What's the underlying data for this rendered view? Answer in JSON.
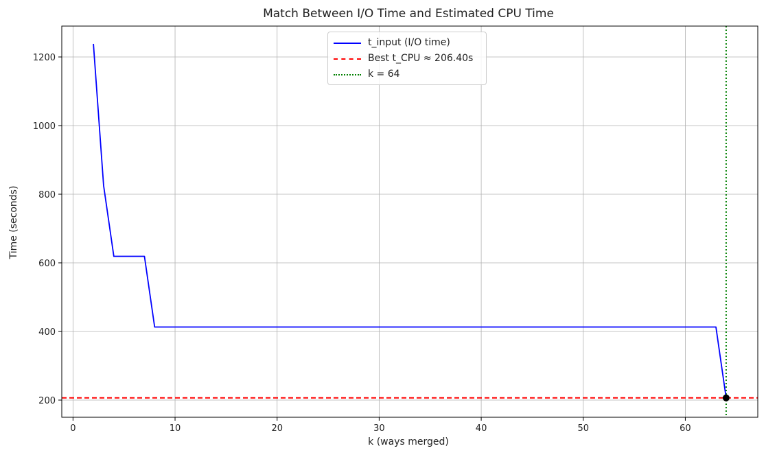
{
  "chart_data": {
    "type": "line",
    "title": "Match Between I/O Time and Estimated CPU Time",
    "xlabel": "k (ways merged)",
    "ylabel": "Time (seconds)",
    "xlim": [
      -1.1,
      67.1
    ],
    "ylim": [
      150,
      1290
    ],
    "xticks": [
      0,
      10,
      20,
      30,
      40,
      50,
      60
    ],
    "yticks": [
      200,
      400,
      600,
      800,
      1000,
      1200
    ],
    "grid": true,
    "legend_position": "top-center",
    "series": [
      {
        "name": "t_input (I/O time)",
        "color": "#0000ff",
        "style": "solid",
        "x": [
          2,
          3,
          4,
          5,
          6,
          7,
          8,
          63,
          64
        ],
        "y": [
          1238,
          825,
          619,
          619,
          619,
          619,
          413,
          413,
          206.4
        ]
      }
    ],
    "hlines": [
      {
        "name": "Best t_CPU ≈ 206.40s",
        "y": 206.4,
        "color": "#ff0000",
        "style": "dashed"
      }
    ],
    "vlines": [
      {
        "name": "k = 64",
        "x": 64,
        "color": "#008000",
        "style": "dotted"
      }
    ],
    "points": [
      {
        "x": 64,
        "y": 206.4,
        "color": "#000000"
      }
    ],
    "legend": [
      {
        "label": "t_input (I/O time)",
        "color": "#0000ff",
        "style": "solid"
      },
      {
        "label": "Best t_CPU ≈ 206.40s",
        "color": "#ff0000",
        "style": "dashed"
      },
      {
        "label": "k = 64",
        "color": "#008000",
        "style": "dotted"
      }
    ]
  }
}
